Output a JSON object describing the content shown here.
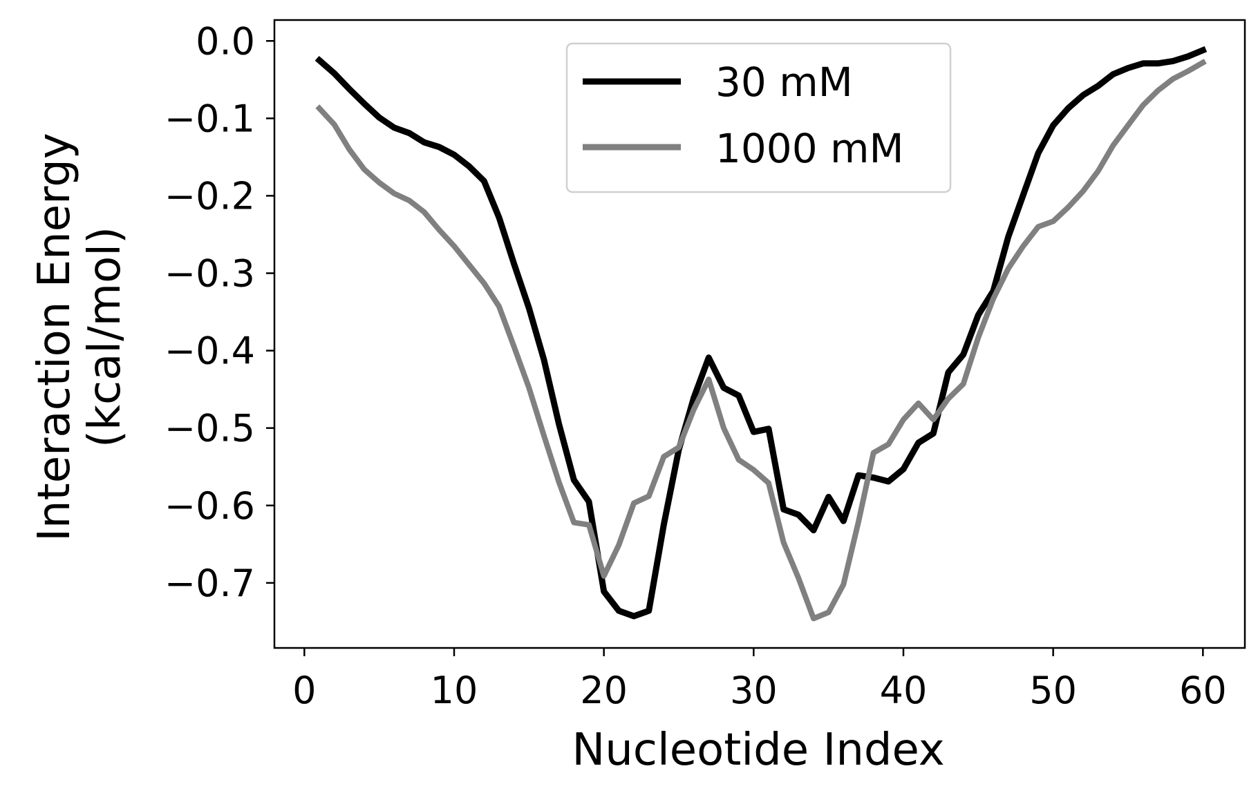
{
  "chart_data": {
    "type": "line",
    "title": "",
    "xlabel": "Nucleotide Index",
    "ylabel_lines": [
      "Interaction Energy",
      "(kcal/mol)"
    ],
    "xlim": [
      -2,
      62.8
    ],
    "ylim": [
      -0.784,
      0.027
    ],
    "xticks": [
      0,
      10,
      20,
      30,
      40,
      50,
      60
    ],
    "xtick_labels": [
      "0",
      "10",
      "20",
      "30",
      "40",
      "50",
      "60"
    ],
    "yticks": [
      0.0,
      -0.1,
      -0.2,
      -0.3,
      -0.4,
      -0.5,
      -0.6,
      -0.7
    ],
    "ytick_labels": [
      "0.0",
      "−0.1",
      "−0.2",
      "−0.3",
      "−0.4",
      "−0.5",
      "−0.6",
      "−0.7"
    ],
    "grid": false,
    "legend_position": "top-center",
    "x": [
      1,
      2,
      3,
      4,
      5,
      6,
      7,
      8,
      9,
      10,
      11,
      12,
      13,
      14,
      15,
      16,
      17,
      18,
      19,
      20,
      21,
      22,
      23,
      24,
      25,
      26,
      27,
      28,
      29,
      30,
      31,
      32,
      33,
      34,
      35,
      36,
      37,
      38,
      39,
      40,
      41,
      42,
      43,
      44,
      45,
      46,
      47,
      48,
      49,
      50,
      51,
      52,
      53,
      54,
      55,
      56,
      57,
      58,
      59,
      60
    ],
    "series": [
      {
        "name": "30 mM",
        "color": "#000000",
        "values": [
          -0.025,
          -0.042,
          -0.062,
          -0.081,
          -0.099,
          -0.112,
          -0.119,
          -0.131,
          -0.137,
          -0.147,
          -0.162,
          -0.181,
          -0.228,
          -0.288,
          -0.345,
          -0.412,
          -0.495,
          -0.567,
          -0.595,
          -0.711,
          -0.736,
          -0.743,
          -0.736,
          -0.625,
          -0.528,
          -0.461,
          -0.409,
          -0.448,
          -0.458,
          -0.505,
          -0.501,
          -0.605,
          -0.612,
          -0.632,
          -0.589,
          -0.62,
          -0.561,
          -0.564,
          -0.569,
          -0.553,
          -0.519,
          -0.507,
          -0.428,
          -0.405,
          -0.354,
          -0.323,
          -0.253,
          -0.199,
          -0.145,
          -0.109,
          -0.087,
          -0.07,
          -0.058,
          -0.043,
          -0.035,
          -0.029,
          -0.029,
          -0.026,
          -0.02,
          -0.012
        ]
      },
      {
        "name": "1000 mM",
        "color": "#808080",
        "values": [
          -0.087,
          -0.108,
          -0.14,
          -0.166,
          -0.183,
          -0.197,
          -0.206,
          -0.221,
          -0.244,
          -0.265,
          -0.289,
          -0.313,
          -0.343,
          -0.395,
          -0.448,
          -0.51,
          -0.57,
          -0.622,
          -0.625,
          -0.691,
          -0.651,
          -0.597,
          -0.588,
          -0.537,
          -0.525,
          -0.476,
          -0.437,
          -0.5,
          -0.541,
          -0.554,
          -0.571,
          -0.648,
          -0.694,
          -0.746,
          -0.738,
          -0.702,
          -0.621,
          -0.532,
          -0.521,
          -0.489,
          -0.468,
          -0.489,
          -0.462,
          -0.443,
          -0.383,
          -0.333,
          -0.294,
          -0.265,
          -0.24,
          -0.233,
          -0.215,
          -0.194,
          -0.168,
          -0.135,
          -0.109,
          -0.083,
          -0.064,
          -0.049,
          -0.039,
          -0.028
        ]
      }
    ]
  }
}
